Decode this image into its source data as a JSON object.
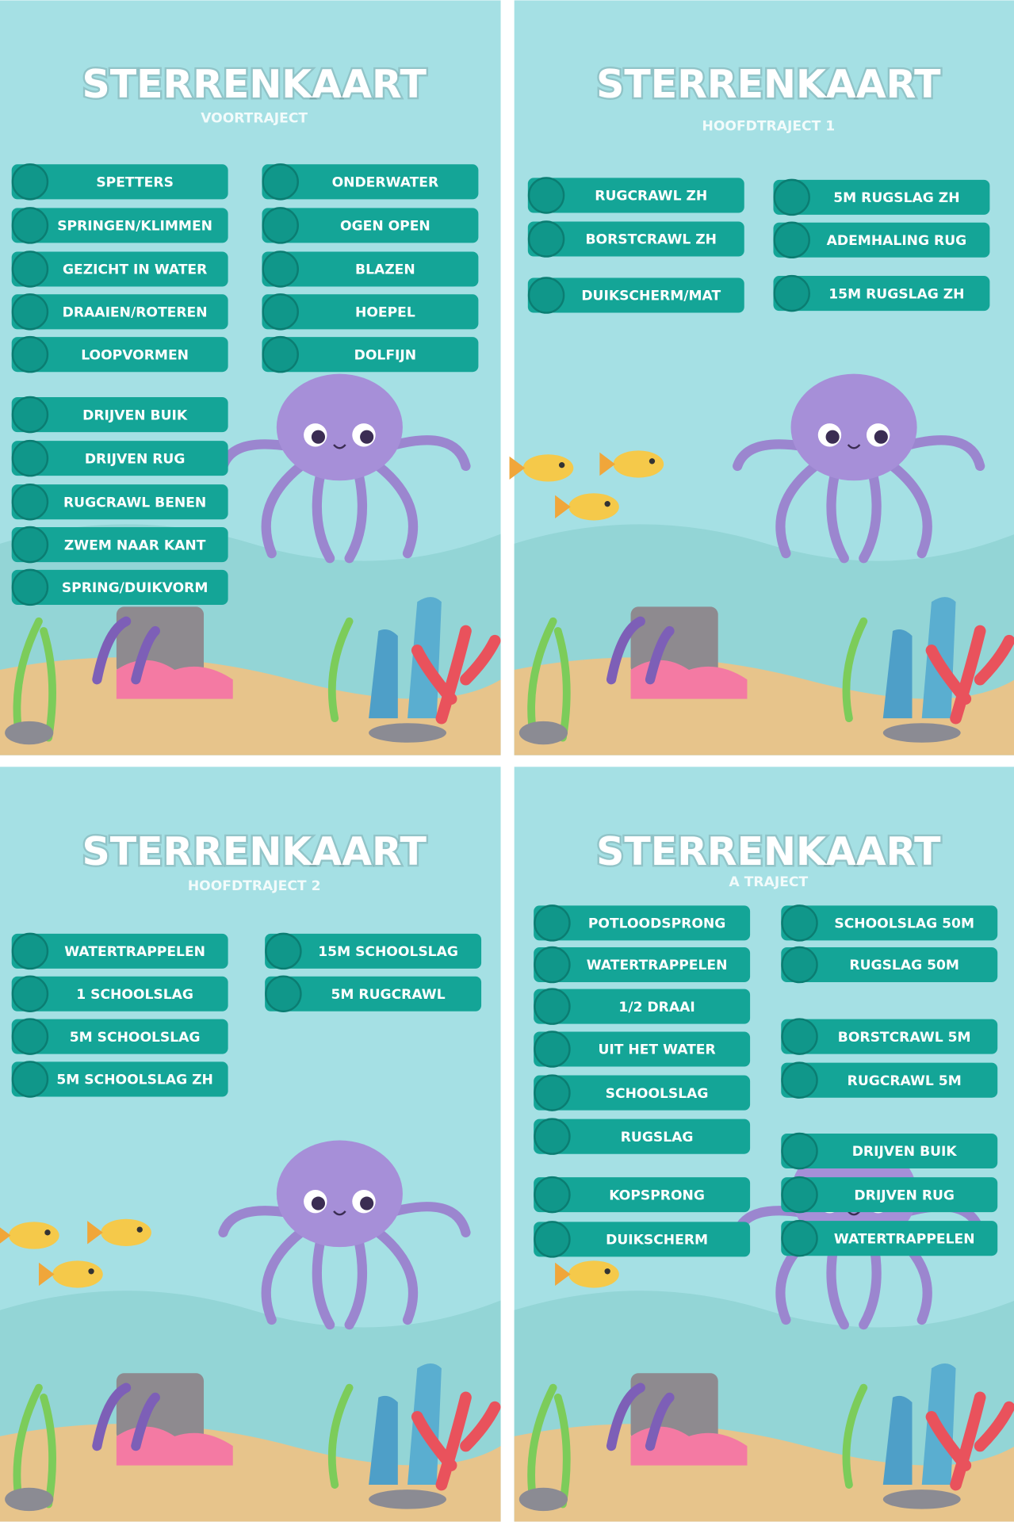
{
  "cards": [
    {
      "title": "STERRENKAART",
      "subtitle": "VOORTRAJECT",
      "columns": [
        [
          "SPETTERS",
          "SPRINGEN/KLIMMEN",
          "GEZICHT IN WATER",
          "DRAAIEN/ROTEREN",
          "LOOPVORMEN",
          "DRIJVEN BUIK",
          "DRIJVEN RUG",
          "RUGCRAWL BENEN",
          "ZWEM NAAR KANT",
          "SPRING/DUIKVORM"
        ],
        [
          "ONDERWATER",
          "OGEN OPEN",
          "BLAZEN",
          "HOEPEL",
          "DOLFIJN"
        ]
      ]
    },
    {
      "title": "STERRENKAART",
      "subtitle": "HOOFDTRAJECT 1",
      "columns": [
        [
          "RUGCRAWL ZH",
          "BORSTCRAWL ZH",
          "DUIKSCHERM/MAT"
        ],
        [
          "5M RUGSLAG ZH",
          "ADEMHALING RUG",
          "15M RUGSLAG ZH"
        ]
      ]
    },
    {
      "title": "STERRENKAART",
      "subtitle": "HOOFDTRAJECT 2",
      "columns": [
        [
          "WATERTRAPPELEN",
          "1 SCHOOLSLAG",
          "5M SCHOOLSLAG",
          "5M SCHOOLSLAG ZH"
        ],
        [
          "15M SCHOOLSLAG",
          "5M RUGCRAWL"
        ]
      ]
    },
    {
      "title": "STERRENKAART",
      "subtitle": "A TRAJECT",
      "columns": [
        [
          "POTLOODSPRONG",
          "WATERTRAPPELEN",
          "1/2 DRAAI",
          "UIT HET WATER",
          "SCHOOLSLAG",
          "RUGSLAG",
          "KOPSPRONG",
          "DUIKSCHERM"
        ],
        [
          "SCHOOLSLAG 50M",
          "RUGSLAG 50M",
          "BORSTCRAWL 5M",
          "RUGCRAWL 5M",
          "DRIJVEN BUIK",
          "DRIJVEN RUG",
          "WATERTRAPPELEN"
        ]
      ]
    }
  ]
}
